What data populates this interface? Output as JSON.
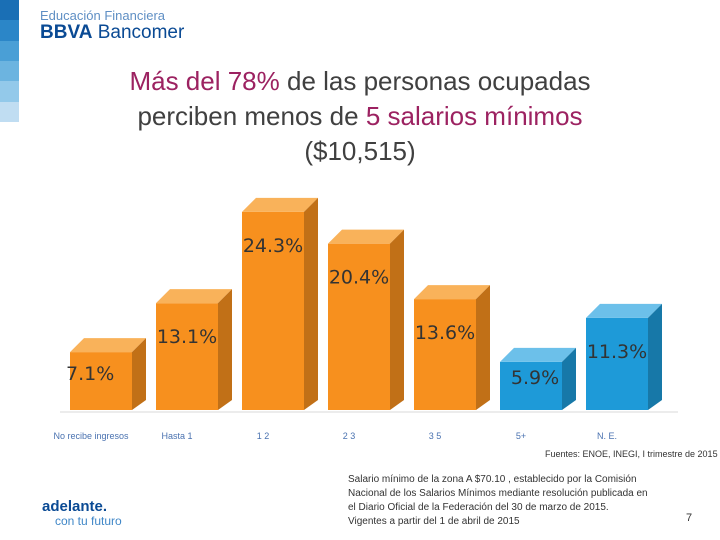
{
  "header": {
    "brand_top": "Educación Financiera",
    "brand_bold": "BBVA",
    "brand_rest": " Bancomer"
  },
  "title": {
    "hl1": "Más del 78%",
    "t1": " de las personas ocupadas",
    "t2": "perciben menos de ",
    "hl2": "5 salarios mínimos",
    "t3": "($10,515)"
  },
  "colors": {
    "highlight": "#9c2261",
    "orange": "#f7901e",
    "blue": "#1e9ad8",
    "strip": [
      "#1a6fb5",
      "#2b86c8",
      "#4a9fd6",
      "#6cb4e0",
      "#93c9ea",
      "#c0ddf2"
    ]
  },
  "chart_data": {
    "type": "bar",
    "categories": [
      "No recibe ingresos",
      "Hasta 1",
      "1 2",
      "2 3",
      "3 5",
      "5+",
      "N. E."
    ],
    "values": [
      7.1,
      13.1,
      24.3,
      20.4,
      13.6,
      5.9,
      11.3
    ],
    "labels": [
      "7.1%",
      "13.1%",
      "24.3%",
      "20.4%",
      "13.6%",
      "5.9%",
      "11.3%"
    ],
    "title": "",
    "xlabel": "",
    "ylabel": "",
    "ylim": [
      0,
      26
    ]
  },
  "source": "Fuentes: ENOE, INEGI, I trimestre de 2015",
  "note": [
    "Salario mínimo de la zona A $70.10 , establecido por la Comisión",
    "Nacional de los Salarios Mínimos mediante resolución publicada en",
    " el Diario Oficial de la Federación del 30 de marzo de 2015.",
    "Vigentes a partir del 1 de abril de 2015"
  ],
  "footer": {
    "logo_line1": "adelante.",
    "logo_line2": "con tu futuro",
    "page": "7"
  }
}
